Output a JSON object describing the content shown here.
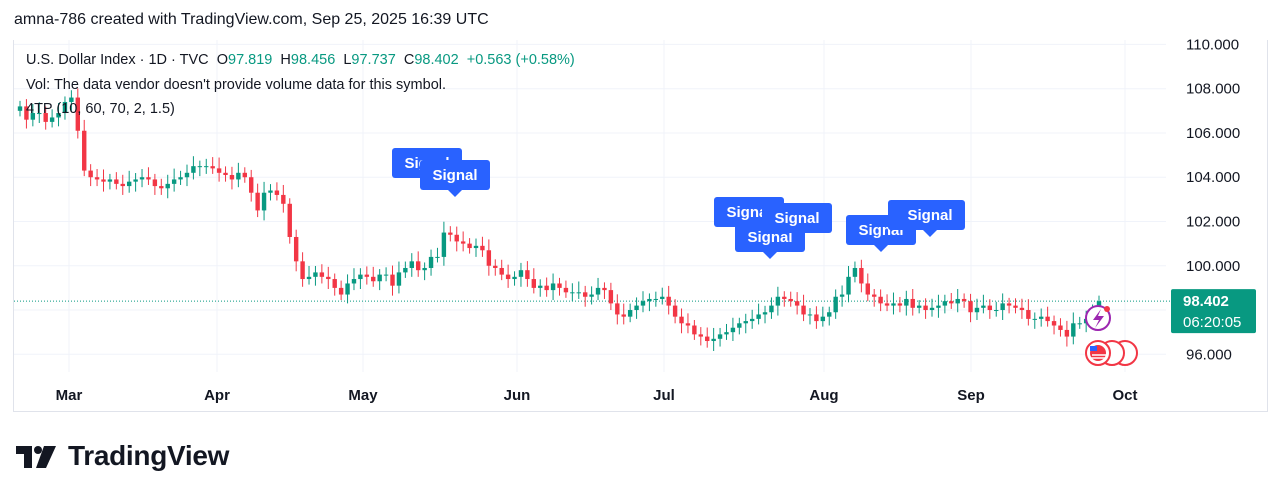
{
  "header": {
    "text": "amna-786 created with TradingView.com, Sep 25, 2025 16:39 UTC"
  },
  "legend": {
    "symbol": "U.S. Dollar Index · 1D · TVC",
    "o_label": "O",
    "o": "97.819",
    "h_label": "H",
    "h": "98.456",
    "l_label": "L",
    "l": "97.737",
    "c_label": "C",
    "c": "98.402",
    "change": "+0.563 (+0.58%)",
    "vol": "Vol: The data vendor doesn't provide volume data for this symbol.",
    "indicator": "4TP (10, 60, 70, 2, 1.5)"
  },
  "price_badge": {
    "price": "98.402",
    "countdown": "06:20:05"
  },
  "logo": {
    "text": "TradingView"
  },
  "colors": {
    "up": "#089981",
    "down": "#f23645",
    "signal": "#2962ff",
    "grid": "#f0f3fa",
    "axis_text": "#131722"
  },
  "chart_data": {
    "type": "candlestick",
    "symbol": "U.S. Dollar Index",
    "interval": "1D",
    "ylim": [
      95.2,
      110.2
    ],
    "y_ticks": [
      96,
      98,
      100,
      102,
      104,
      106,
      108,
      110
    ],
    "y_tick_labels": [
      "96.000",
      "98.000",
      "100.000",
      "102.000",
      "104.000",
      "106.000",
      "108.000",
      "110.000"
    ],
    "x_ticks": [
      "Mar",
      "Apr",
      "May",
      "Jun",
      "Jul",
      "Aug",
      "Sep",
      "Oct"
    ],
    "last_price": 98.402,
    "close_series": [
      107.2,
      106.6,
      106.9,
      106.9,
      106.5,
      106.7,
      106.9,
      107.4,
      107.6,
      106.1,
      104.3,
      104.0,
      103.9,
      103.8,
      103.9,
      103.7,
      103.6,
      103.8,
      103.9,
      104.0,
      103.9,
      103.6,
      103.5,
      103.7,
      103.9,
      104.0,
      104.2,
      104.5,
      104.5,
      104.5,
      104.4,
      104.2,
      104.1,
      103.9,
      104.2,
      104.0,
      103.3,
      102.5,
      103.3,
      103.4,
      103.2,
      102.8,
      101.3,
      100.2,
      99.4,
      99.5,
      99.7,
      99.5,
      99.4,
      99.0,
      98.7,
      99.2,
      99.4,
      99.6,
      99.5,
      99.3,
      99.6,
      99.6,
      99.1,
      99.7,
      99.9,
      100.2,
      99.8,
      99.9,
      100.4,
      100.4,
      101.5,
      101.4,
      101.1,
      101.0,
      100.8,
      100.9,
      100.7,
      100.0,
      99.9,
      99.6,
      99.4,
      99.5,
      99.8,
      99.4,
      99.0,
      99.1,
      98.9,
      99.2,
      99.0,
      98.8,
      98.8,
      98.8,
      98.6,
      98.7,
      99.0,
      98.9,
      98.3,
      97.8,
      97.7,
      98.0,
      98.2,
      98.4,
      98.5,
      98.5,
      98.6,
      98.2,
      97.7,
      97.4,
      97.3,
      96.9,
      96.8,
      96.6,
      96.7,
      96.9,
      97.0,
      97.2,
      97.4,
      97.5,
      97.6,
      97.8,
      97.9,
      98.2,
      98.6,
      98.5,
      98.4,
      98.2,
      97.8,
      97.8,
      97.5,
      97.7,
      97.9,
      98.6,
      98.7,
      99.5,
      99.9,
      99.2,
      98.7,
      98.6,
      98.3,
      98.2,
      98.3,
      98.2,
      98.5,
      98.1,
      98.2,
      98.0,
      98.1,
      98.2,
      98.4,
      98.3,
      98.5,
      98.4,
      97.9,
      98.1,
      98.2,
      98.0,
      98.0,
      98.3,
      98.2,
      98.1,
      98.0,
      97.6,
      97.6,
      97.7,
      97.5,
      97.3,
      97.1,
      96.8,
      97.4,
      97.4,
      97.6,
      97.8,
      98.4
    ]
  }
}
